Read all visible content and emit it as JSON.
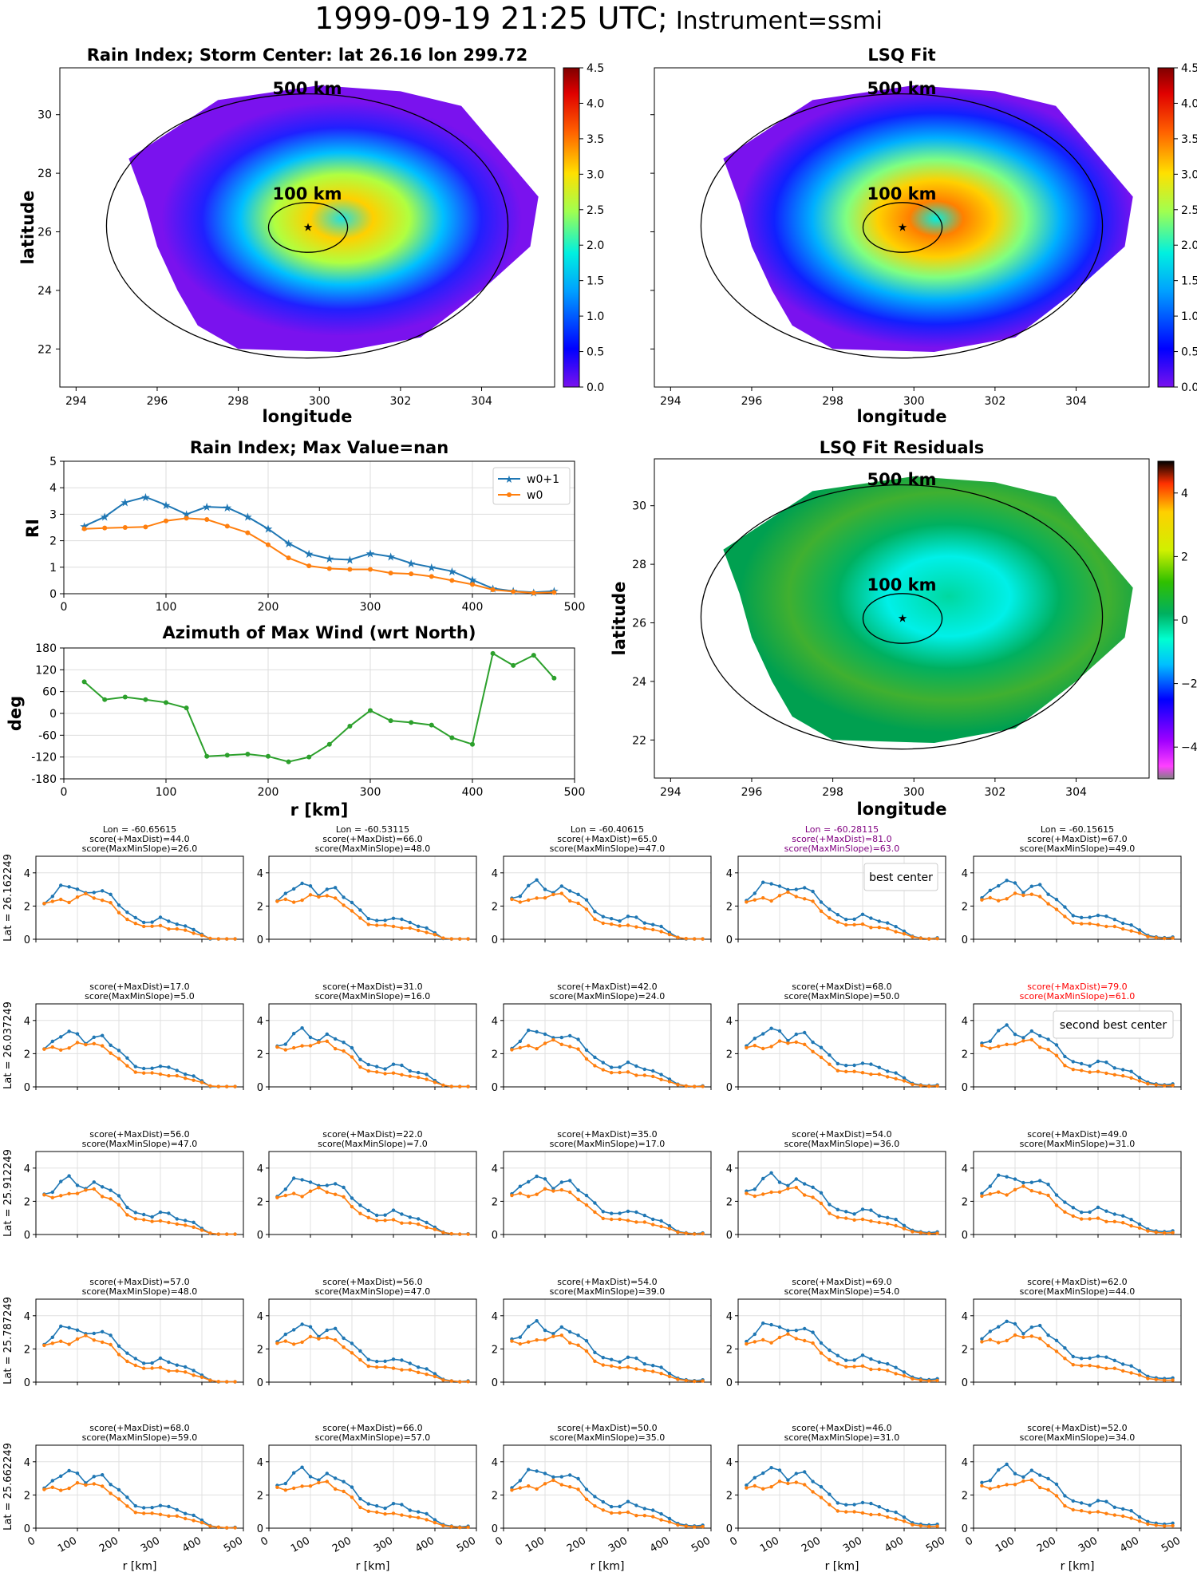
{
  "header": {
    "datetime": "1999-09-19 21:25 UTC;",
    "instrument": "Instrument=ssmi"
  },
  "map_panels": {
    "rain_index": {
      "title": "Rain Index; Storm Center: lat 26.16 lon 299.72",
      "xlabel": "longitude",
      "ylabel": "latitude",
      "colorbar_ticks": [
        "0.0",
        "0.5",
        "1.0",
        "1.5",
        "2.0",
        "2.5",
        "3.0",
        "3.5",
        "4.0",
        "4.5"
      ]
    },
    "lsq_fit": {
      "title": "LSQ Fit",
      "xlabel": "longitude",
      "colorbar_ticks": [
        "0.0",
        "0.5",
        "1.0",
        "1.5",
        "2.0",
        "2.5",
        "3.0",
        "3.5",
        "4.0",
        "4.5"
      ]
    },
    "lsq_residuals": {
      "title": "LSQ Fit Residuals",
      "xlabel": "longitude",
      "ylabel": "latitude",
      "colorbar_ticks": [
        "4",
        "2",
        "0",
        "−2",
        "−4"
      ]
    },
    "lon_ticks": [
      "294",
      "296",
      "298",
      "300",
      "302",
      "304"
    ],
    "lat_ticks": [
      "30",
      "28",
      "26",
      "24",
      "22"
    ],
    "ring_labels": {
      "outer": "500 km",
      "inner": "100 km"
    },
    "colors": {
      "ocean_low": "#7a12ee",
      "rain_colormap": "jet",
      "residual_colormap": "gist_ncar"
    }
  },
  "chart_data": [
    {
      "type": "line",
      "title": "Rain Index; Max Value=nan",
      "ylabel": "RI",
      "ylim": [
        0,
        5
      ],
      "xlim": [
        0,
        500
      ],
      "legend": "top-right",
      "x": [
        20,
        40,
        60,
        80,
        100,
        120,
        140,
        160,
        180,
        200,
        220,
        240,
        260,
        280,
        300,
        320,
        340,
        360,
        380,
        400,
        420,
        440,
        460,
        480
      ],
      "series": [
        {
          "name": "w0+1",
          "color": "#1f77b4",
          "marker": "star",
          "values": [
            2.55,
            2.9,
            3.45,
            3.65,
            3.35,
            3.0,
            3.28,
            3.25,
            2.9,
            2.45,
            1.9,
            1.5,
            1.32,
            1.28,
            1.52,
            1.4,
            1.15,
            1.0,
            0.85,
            0.52,
            0.2,
            0.1,
            0.05,
            0.1
          ]
        },
        {
          "name": "w0",
          "color": "#ff7f0e",
          "marker": "dot",
          "values": [
            2.45,
            2.48,
            2.5,
            2.52,
            2.75,
            2.85,
            2.8,
            2.55,
            2.3,
            1.85,
            1.35,
            1.05,
            0.95,
            0.92,
            0.92,
            0.78,
            0.75,
            0.65,
            0.5,
            0.35,
            0.15,
            0.08,
            0.03,
            0.05
          ]
        }
      ],
      "ytick_labels": [
        "0",
        "1",
        "2",
        "3",
        "4",
        "5"
      ],
      "xtick_labels": [
        "0",
        "100",
        "200",
        "300",
        "400",
        "500"
      ]
    },
    {
      "type": "line",
      "title": "Azimuth of Max Wind (wrt North)",
      "xlabel": "r [km]",
      "ylabel": "deg",
      "ylim": [
        -180,
        180
      ],
      "xlim": [
        0,
        500
      ],
      "x": [
        20,
        40,
        60,
        80,
        100,
        120,
        140,
        160,
        180,
        200,
        220,
        240,
        260,
        280,
        300,
        320,
        340,
        360,
        380,
        400,
        420,
        440,
        460,
        480
      ],
      "series": [
        {
          "color": "#2ca02c",
          "marker": "dot",
          "values": [
            87,
            38,
            45,
            38,
            30,
            15,
            -118,
            -115,
            -112,
            -118,
            -133,
            -120,
            -85,
            -35,
            8,
            -20,
            -25,
            -32,
            -67,
            -85,
            165,
            132,
            160,
            97
          ]
        }
      ],
      "ytick_labels": [
        "180",
        "120",
        "60",
        "0",
        "-60",
        "-120",
        "-180"
      ],
      "xtick_labels": [
        "0",
        "100",
        "200",
        "300",
        "400",
        "500"
      ]
    }
  ],
  "grid": {
    "xlabel": "r [km]",
    "xtick_labels": [
      "0",
      "100",
      "200",
      "300",
      "400",
      "500"
    ],
    "ytick_labels": [
      "0",
      "2",
      "4"
    ],
    "row_labels": [
      "Lat = 26.162249",
      "Lat = 26.037249",
      "Lat = 25.912249",
      "Lat = 25.787249",
      "Lat = 25.662249"
    ],
    "cells": [
      [
        {
          "lines": [
            "Lon = -60.65615",
            "score(+MaxDist)=44.0",
            "score(MaxMinSlope)=26.0"
          ],
          "color": "#000000"
        },
        {
          "lines": [
            "Lon = -60.53115",
            "score(+MaxDist)=66.0",
            "score(MaxMinSlope)=48.0"
          ],
          "color": "#000000"
        },
        {
          "lines": [
            "Lon = -60.40615",
            "score(+MaxDist)=65.0",
            "score(MaxMinSlope)=47.0"
          ],
          "color": "#000000"
        },
        {
          "lines": [
            "Lon = -60.28115",
            "score(+MaxDist)=81.0",
            "score(MaxMinSlope)=63.0"
          ],
          "color": "#800080",
          "note": "best center"
        },
        {
          "lines": [
            "Lon = -60.15615",
            "score(+MaxDist)=67.0",
            "score(MaxMinSlope)=49.0"
          ],
          "color": "#000000"
        }
      ],
      [
        {
          "lines": [
            "score(+MaxDist)=17.0",
            "score(MaxMinSlope)=5.0"
          ],
          "color": "#000000"
        },
        {
          "lines": [
            "score(+MaxDist)=31.0",
            "score(MaxMinSlope)=16.0"
          ],
          "color": "#000000"
        },
        {
          "lines": [
            "score(+MaxDist)=42.0",
            "score(MaxMinSlope)=24.0"
          ],
          "color": "#000000"
        },
        {
          "lines": [
            "score(+MaxDist)=68.0",
            "score(MaxMinSlope)=50.0"
          ],
          "color": "#000000"
        },
        {
          "lines": [
            "score(+MaxDist)=79.0",
            "score(MaxMinSlope)=61.0"
          ],
          "color": "#ff0000",
          "note": "second best center"
        }
      ],
      [
        {
          "lines": [
            "score(+MaxDist)=56.0",
            "score(MaxMinSlope)=47.0"
          ],
          "color": "#000000"
        },
        {
          "lines": [
            "score(+MaxDist)=22.0",
            "score(MaxMinSlope)=7.0"
          ],
          "color": "#000000"
        },
        {
          "lines": [
            "score(+MaxDist)=35.0",
            "score(MaxMinSlope)=17.0"
          ],
          "color": "#000000"
        },
        {
          "lines": [
            "score(+MaxDist)=54.0",
            "score(MaxMinSlope)=36.0"
          ],
          "color": "#000000"
        },
        {
          "lines": [
            "score(+MaxDist)=49.0",
            "score(MaxMinSlope)=31.0"
          ],
          "color": "#000000"
        }
      ],
      [
        {
          "lines": [
            "score(+MaxDist)=57.0",
            "score(MaxMinSlope)=48.0"
          ],
          "color": "#000000"
        },
        {
          "lines": [
            "score(+MaxDist)=56.0",
            "score(MaxMinSlope)=47.0"
          ],
          "color": "#000000"
        },
        {
          "lines": [
            "score(+MaxDist)=54.0",
            "score(MaxMinSlope)=39.0"
          ],
          "color": "#000000"
        },
        {
          "lines": [
            "score(+MaxDist)=69.0",
            "score(MaxMinSlope)=54.0"
          ],
          "color": "#000000"
        },
        {
          "lines": [
            "score(+MaxDist)=62.0",
            "score(MaxMinSlope)=44.0"
          ],
          "color": "#000000"
        }
      ],
      [
        {
          "lines": [
            "score(+MaxDist)=68.0",
            "score(MaxMinSlope)=59.0"
          ],
          "color": "#000000"
        },
        {
          "lines": [
            "score(+MaxDist)=66.0",
            "score(MaxMinSlope)=57.0"
          ],
          "color": "#000000"
        },
        {
          "lines": [
            "score(+MaxDist)=50.0",
            "score(MaxMinSlope)=35.0"
          ],
          "color": "#000000"
        },
        {
          "lines": [
            "score(+MaxDist)=46.0",
            "score(MaxMinSlope)=31.0"
          ],
          "color": "#000000"
        },
        {
          "lines": [
            "score(+MaxDist)=52.0",
            "score(MaxMinSlope)=34.0"
          ],
          "color": "#000000"
        }
      ]
    ]
  }
}
